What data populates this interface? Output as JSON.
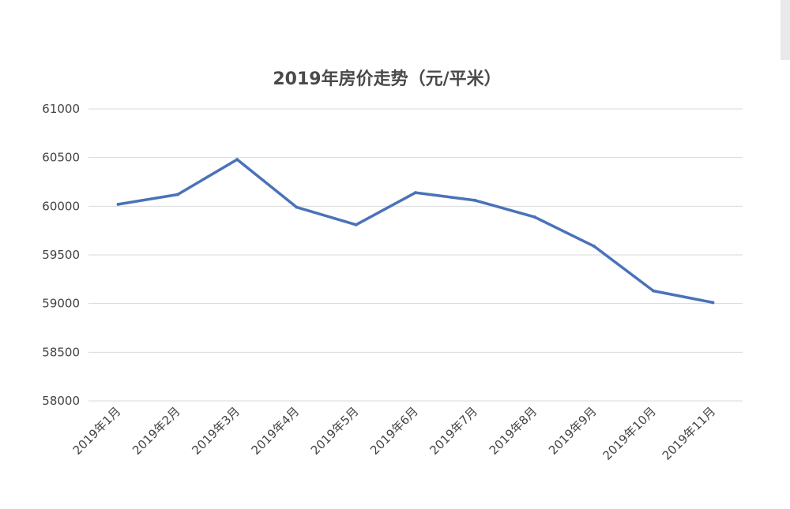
{
  "chart_data": {
    "type": "line",
    "title": "2019年房价走势（元/平米）",
    "xlabel": "",
    "ylabel": "",
    "categories": [
      "2019年1月",
      "2019年2月",
      "2019年3月",
      "2019年4月",
      "2019年5月",
      "2019年6月",
      "2019年7月",
      "2019年8月",
      "2019年9月",
      "2019年10月",
      "2019年11月"
    ],
    "series": [
      {
        "values": [
          60020,
          60120,
          60480,
          59990,
          59810,
          60140,
          60060,
          59890,
          59590,
          59130,
          59010
        ]
      }
    ],
    "ylim": [
      58000,
      61000
    ],
    "yticks": [
      58000,
      58500,
      59000,
      59500,
      60000,
      60500,
      61000
    ],
    "grid": true,
    "colors": {
      "line": "#4a72b8",
      "grid": "#d9d9d9",
      "text": "#444444"
    }
  }
}
